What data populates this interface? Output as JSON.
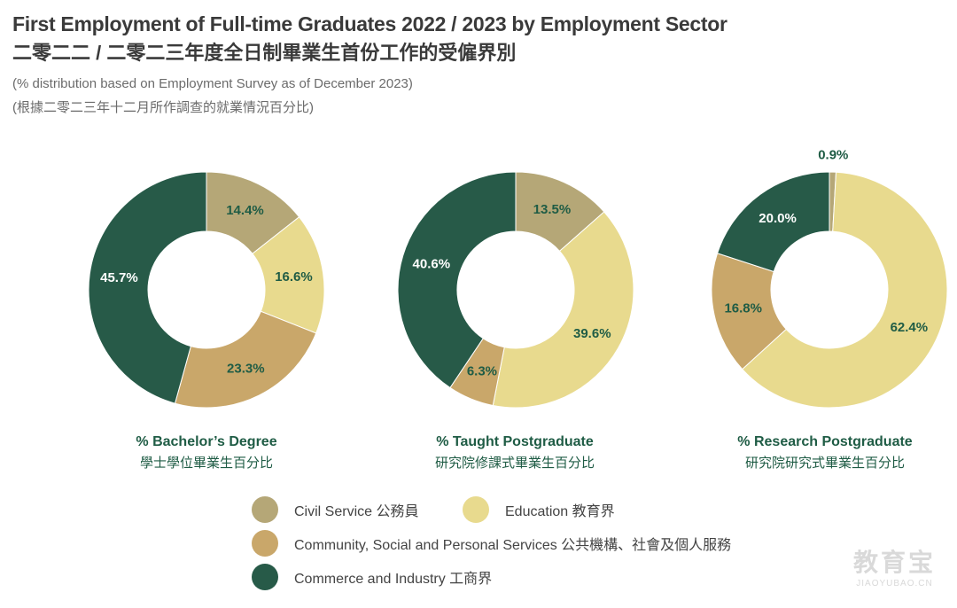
{
  "header": {
    "title_en": "First Employment of Full-time Graduates 2022 / 2023 by Employment Sector",
    "title_zh": "二零二二 / 二零二三年度全日制畢業生首份工作的受僱界別",
    "subtitle_en": "(% distribution based on Employment Survey as of December 2023)",
    "subtitle_zh": "(根據二零二三年十二月所作調查的就業情況百分比)"
  },
  "colors": {
    "civil_service": "#b5a777",
    "education": "#e8da8e",
    "community": "#c9a76a",
    "commerce": "#275a48",
    "label_dark": "#1f5c45",
    "label_light": "#ffffff"
  },
  "chart_data": [
    {
      "type": "pie",
      "donut": true,
      "title_en": "% Bachelor’s Degree",
      "title_zh": "學士學位畢業生百分比",
      "slices": [
        {
          "category": "Civil Service",
          "value": 14.4,
          "label": "14.4%"
        },
        {
          "category": "Education",
          "value": 16.6,
          "label": "16.6%"
        },
        {
          "category": "Community, Social and Personal Services",
          "value": 23.3,
          "label": "23.3%"
        },
        {
          "category": "Commerce and Industry",
          "value": 45.7,
          "label": "45.7%"
        }
      ]
    },
    {
      "type": "pie",
      "donut": true,
      "title_en": "% Taught Postgraduate",
      "title_zh": "研究院修課式畢業生百分比",
      "slices": [
        {
          "category": "Civil Service",
          "value": 13.5,
          "label": "13.5%"
        },
        {
          "category": "Education",
          "value": 39.6,
          "label": "39.6%"
        },
        {
          "category": "Community, Social and Personal Services",
          "value": 6.3,
          "label": "6.3%"
        },
        {
          "category": "Commerce and Industry",
          "value": 40.6,
          "label": "40.6%"
        }
      ]
    },
    {
      "type": "pie",
      "donut": true,
      "title_en": "% Research Postgraduate",
      "title_zh": "研究院研究式畢業生百分比",
      "slices": [
        {
          "category": "Civil Service",
          "value": 0.9,
          "label": "0.9%"
        },
        {
          "category": "Education",
          "value": 62.4,
          "label": "62.4%"
        },
        {
          "category": "Community, Social and Personal Services",
          "value": 16.8,
          "label": "16.8%"
        },
        {
          "category": "Commerce and Industry",
          "value": 20.0,
          "label": "20.0%"
        }
      ]
    }
  ],
  "legend": [
    {
      "key": "civil_service",
      "label": "Civil Service 公務員"
    },
    {
      "key": "education",
      "label": "Education 教育界"
    },
    {
      "key": "community",
      "label": "Community, Social and Personal Services 公共機構、社會及個人服務"
    },
    {
      "key": "commerce",
      "label": "Commerce and Industry 工商界"
    }
  ],
  "watermark": {
    "text": "教育宝",
    "url": "JIAOYUBAO.CN"
  }
}
